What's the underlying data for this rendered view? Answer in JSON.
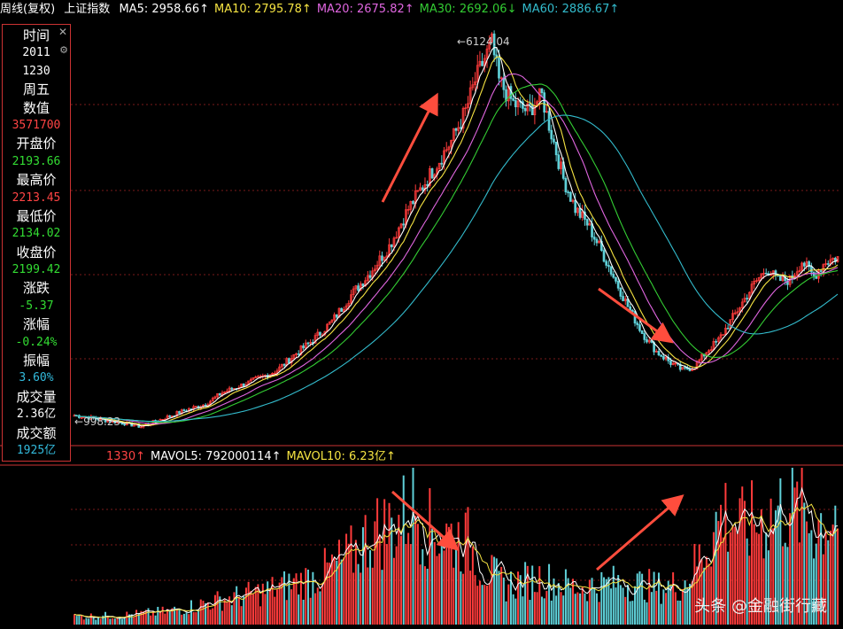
{
  "header": {
    "period": "周线(复权)",
    "index_name": "上证指数",
    "ma": [
      {
        "label": "MA5: 2958.66↑",
        "color": "#ffffff"
      },
      {
        "label": "MA10: 2795.78↑",
        "color": "#f5e342"
      },
      {
        "label": "MA20: 2675.82↑",
        "color": "#e066e0"
      },
      {
        "label": "MA30: 2692.06↓",
        "color": "#33cc33"
      },
      {
        "label": "MA60: 2886.67↑",
        "color": "#33bbcc"
      }
    ]
  },
  "volume_header": {
    "items": [
      {
        "label": "1330↑",
        "color": "#ff4444"
      },
      {
        "label": "MAVOL5: 792000114↑",
        "color": "#ffffff"
      },
      {
        "label": "MAVOL10: 6.23亿↑",
        "color": "#f5e342"
      }
    ]
  },
  "info_panel": {
    "rows": [
      {
        "text": "时间",
        "color": "#ffffff"
      },
      {
        "text": "2011",
        "color": "#ffffff",
        "mono": true
      },
      {
        "text": "1230",
        "color": "#ffffff",
        "mono": true
      },
      {
        "text": "周五",
        "color": "#ffffff"
      },
      {
        "text": "数值",
        "color": "#ffffff"
      },
      {
        "text": "3571700",
        "color": "#ff4444",
        "mono": true
      },
      {
        "text": "开盘价",
        "color": "#ffffff"
      },
      {
        "text": "2193.66",
        "color": "#33dd33",
        "mono": true
      },
      {
        "text": "最高价",
        "color": "#ffffff"
      },
      {
        "text": "2213.45",
        "color": "#ff4444",
        "mono": true
      },
      {
        "text": "最低价",
        "color": "#ffffff"
      },
      {
        "text": "2134.02",
        "color": "#33dd33",
        "mono": true
      },
      {
        "text": "收盘价",
        "color": "#ffffff"
      },
      {
        "text": "2199.42",
        "color": "#33dd33",
        "mono": true
      },
      {
        "text": "涨跌",
        "color": "#ffffff"
      },
      {
        "text": "-5.37",
        "color": "#33dd33",
        "mono": true
      },
      {
        "text": "涨幅",
        "color": "#ffffff"
      },
      {
        "text": "-0.24%",
        "color": "#33dd33",
        "mono": true
      },
      {
        "text": "振幅",
        "color": "#ffffff"
      },
      {
        "text": "3.60%",
        "color": "#33bbdd",
        "mono": true
      },
      {
        "text": "成交量",
        "color": "#ffffff"
      },
      {
        "text": "2.36亿",
        "color": "#ffffff",
        "mono": true
      },
      {
        "text": "成交额",
        "color": "#ffffff"
      },
      {
        "text": "1925亿",
        "color": "#33bbdd",
        "mono": true
      }
    ]
  },
  "watermark": "头条 @金融街行藏",
  "chart_data": {
    "type": "candlestick",
    "price_range": [
      900,
      6300
    ],
    "annotations": {
      "high_label": "6124.04",
      "low_label": "998.23"
    },
    "colors": {
      "up": "#ff3b3b",
      "down": "#5fd0d8",
      "ma5": "#ffffff",
      "ma10": "#f5e342",
      "ma20": "#e066e0",
      "ma30": "#33cc33",
      "ma60": "#33bbcc",
      "arrow": "#ff4d3d"
    },
    "close_path": [
      [
        0,
        1150
      ],
      [
        10,
        1100
      ],
      [
        20,
        1050
      ],
      [
        28,
        1000
      ],
      [
        35,
        1080
      ],
      [
        45,
        1200
      ],
      [
        55,
        1300
      ],
      [
        62,
        1450
      ],
      [
        70,
        1550
      ],
      [
        78,
        1650
      ],
      [
        85,
        1750
      ],
      [
        92,
        1950
      ],
      [
        100,
        2150
      ],
      [
        108,
        2400
      ],
      [
        116,
        2750
      ],
      [
        124,
        3050
      ],
      [
        132,
        3400
      ],
      [
        140,
        3900
      ],
      [
        148,
        4300
      ],
      [
        152,
        4500
      ],
      [
        158,
        4800
      ],
      [
        164,
        5200
      ],
      [
        168,
        5600
      ],
      [
        172,
        5900
      ],
      [
        175,
        6100
      ],
      [
        178,
        5600
      ],
      [
        184,
        5300
      ],
      [
        190,
        5200
      ],
      [
        196,
        5400
      ],
      [
        200,
        4900
      ],
      [
        205,
        4300
      ],
      [
        210,
        3900
      ],
      [
        215,
        3700
      ],
      [
        220,
        3400
      ],
      [
        226,
        3000
      ],
      [
        232,
        2600
      ],
      [
        238,
        2250
      ],
      [
        244,
        2000
      ],
      [
        250,
        1850
      ],
      [
        255,
        1750
      ],
      [
        260,
        1800
      ],
      [
        265,
        2000
      ],
      [
        270,
        2150
      ],
      [
        275,
        2400
      ],
      [
        280,
        2650
      ],
      [
        285,
        2900
      ],
      [
        290,
        3100
      ],
      [
        295,
        2950
      ],
      [
        300,
        2950
      ],
      [
        305,
        3200
      ],
      [
        310,
        3000
      ],
      [
        315,
        3200
      ],
      [
        320,
        3250
      ]
    ],
    "volume_path": [
      [
        0,
        0.06
      ],
      [
        20,
        0.07
      ],
      [
        40,
        0.1
      ],
      [
        60,
        0.18
      ],
      [
        80,
        0.25
      ],
      [
        100,
        0.35
      ],
      [
        115,
        0.5
      ],
      [
        125,
        0.7
      ],
      [
        135,
        0.75
      ],
      [
        142,
        0.9
      ],
      [
        148,
        0.72
      ],
      [
        155,
        0.68
      ],
      [
        165,
        0.62
      ],
      [
        170,
        0.45
      ],
      [
        180,
        0.3
      ],
      [
        195,
        0.35
      ],
      [
        210,
        0.28
      ],
      [
        230,
        0.32
      ],
      [
        245,
        0.28
      ],
      [
        255,
        0.3
      ],
      [
        262,
        0.5
      ],
      [
        268,
        0.7
      ],
      [
        272,
        0.85
      ],
      [
        280,
        0.72
      ],
      [
        290,
        0.8
      ],
      [
        300,
        0.9
      ],
      [
        310,
        0.75
      ],
      [
        320,
        0.85
      ]
    ]
  }
}
